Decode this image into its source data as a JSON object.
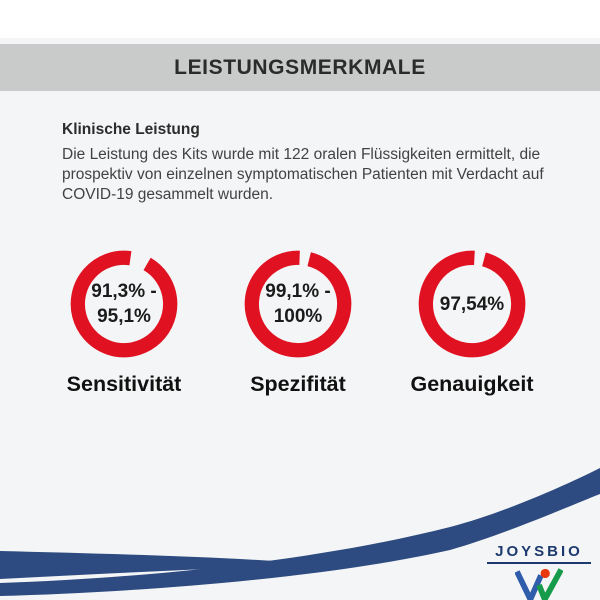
{
  "header": {
    "title": "LEISTUNGSMERKMALE"
  },
  "intro": {
    "heading": "Klinische Leistung",
    "body": "Die Leistung des Kits wurde mit 122 oralen Flüssigkeiten ermittelt, die prospektiv von einzelnen symptomatischen Patienten mit Verdacht auf COVID-19 gesammelt wurden."
  },
  "chart_data": [
    {
      "type": "pie",
      "variant": "donut-gauge",
      "label": "Sensitivität",
      "value_text": "91,3% - 95,1%",
      "value_lines": [
        "91,3% -",
        "95,1%"
      ],
      "ring_color": "#e01222",
      "gap_deg": [
        8,
        30
      ]
    },
    {
      "type": "pie",
      "variant": "donut-gauge",
      "label": "Spezifität",
      "value_text": "99,1% - 100%",
      "value_lines": [
        "99,1% -",
        "100%"
      ],
      "ring_color": "#e01222",
      "gap_deg": [
        2,
        14
      ]
    },
    {
      "type": "pie",
      "variant": "donut-gauge",
      "label": "Genauigkeit",
      "value_text": "97,54%",
      "value_lines": [
        "97,54%"
      ],
      "ring_color": "#e01222",
      "gap_deg": [
        3,
        15
      ]
    }
  ],
  "footer": {
    "logo_text": "JOYSBIO"
  },
  "colors": {
    "accent_red": "#e01222",
    "swoosh_navy": "#2d4b80",
    "logo_navy": "#1d3a6e",
    "logo_blue": "#2f5cab",
    "logo_green": "#169b4a",
    "logo_red": "#e8380d",
    "title_bar_gray": "#c9caca",
    "background": "#f4f5f6",
    "top_band_white": "#ffffff"
  }
}
